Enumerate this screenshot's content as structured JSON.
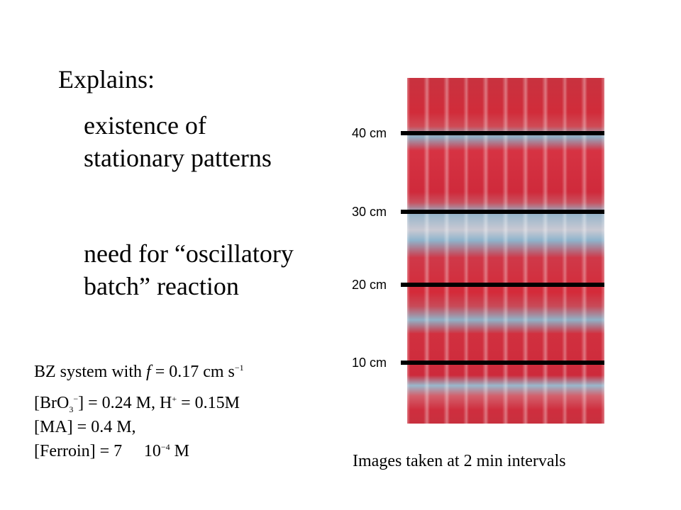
{
  "slide": {
    "heading": "Explains:",
    "points": [
      {
        "line1": "existence of",
        "line2": "stationary patterns"
      },
      {
        "line1": "need for “oscillatory",
        "line2": "batch” reaction"
      }
    ],
    "conditions": {
      "line1": {
        "pre": "BZ system with ",
        "var": "f",
        "post": " = 0.17 cm s",
        "sup": "−1"
      },
      "line2": {
        "pre": "[BrO",
        "sub": "3",
        "sup1": "−",
        "mid": "] = 0.24 M, H",
        "sup2": "+",
        "post": " = 0.15M"
      },
      "line3": "[MA] = 0.4 M,",
      "line4": {
        "pre": "[Ferroin] = 7  10",
        "sup": "−4",
        "post": " M"
      }
    },
    "figure": {
      "caption": "Images taken at 2 min intervals",
      "markers": [
        "40 cm",
        "30 cm",
        "20 cm",
        "10 cm"
      ],
      "strip_count": 10
    }
  }
}
